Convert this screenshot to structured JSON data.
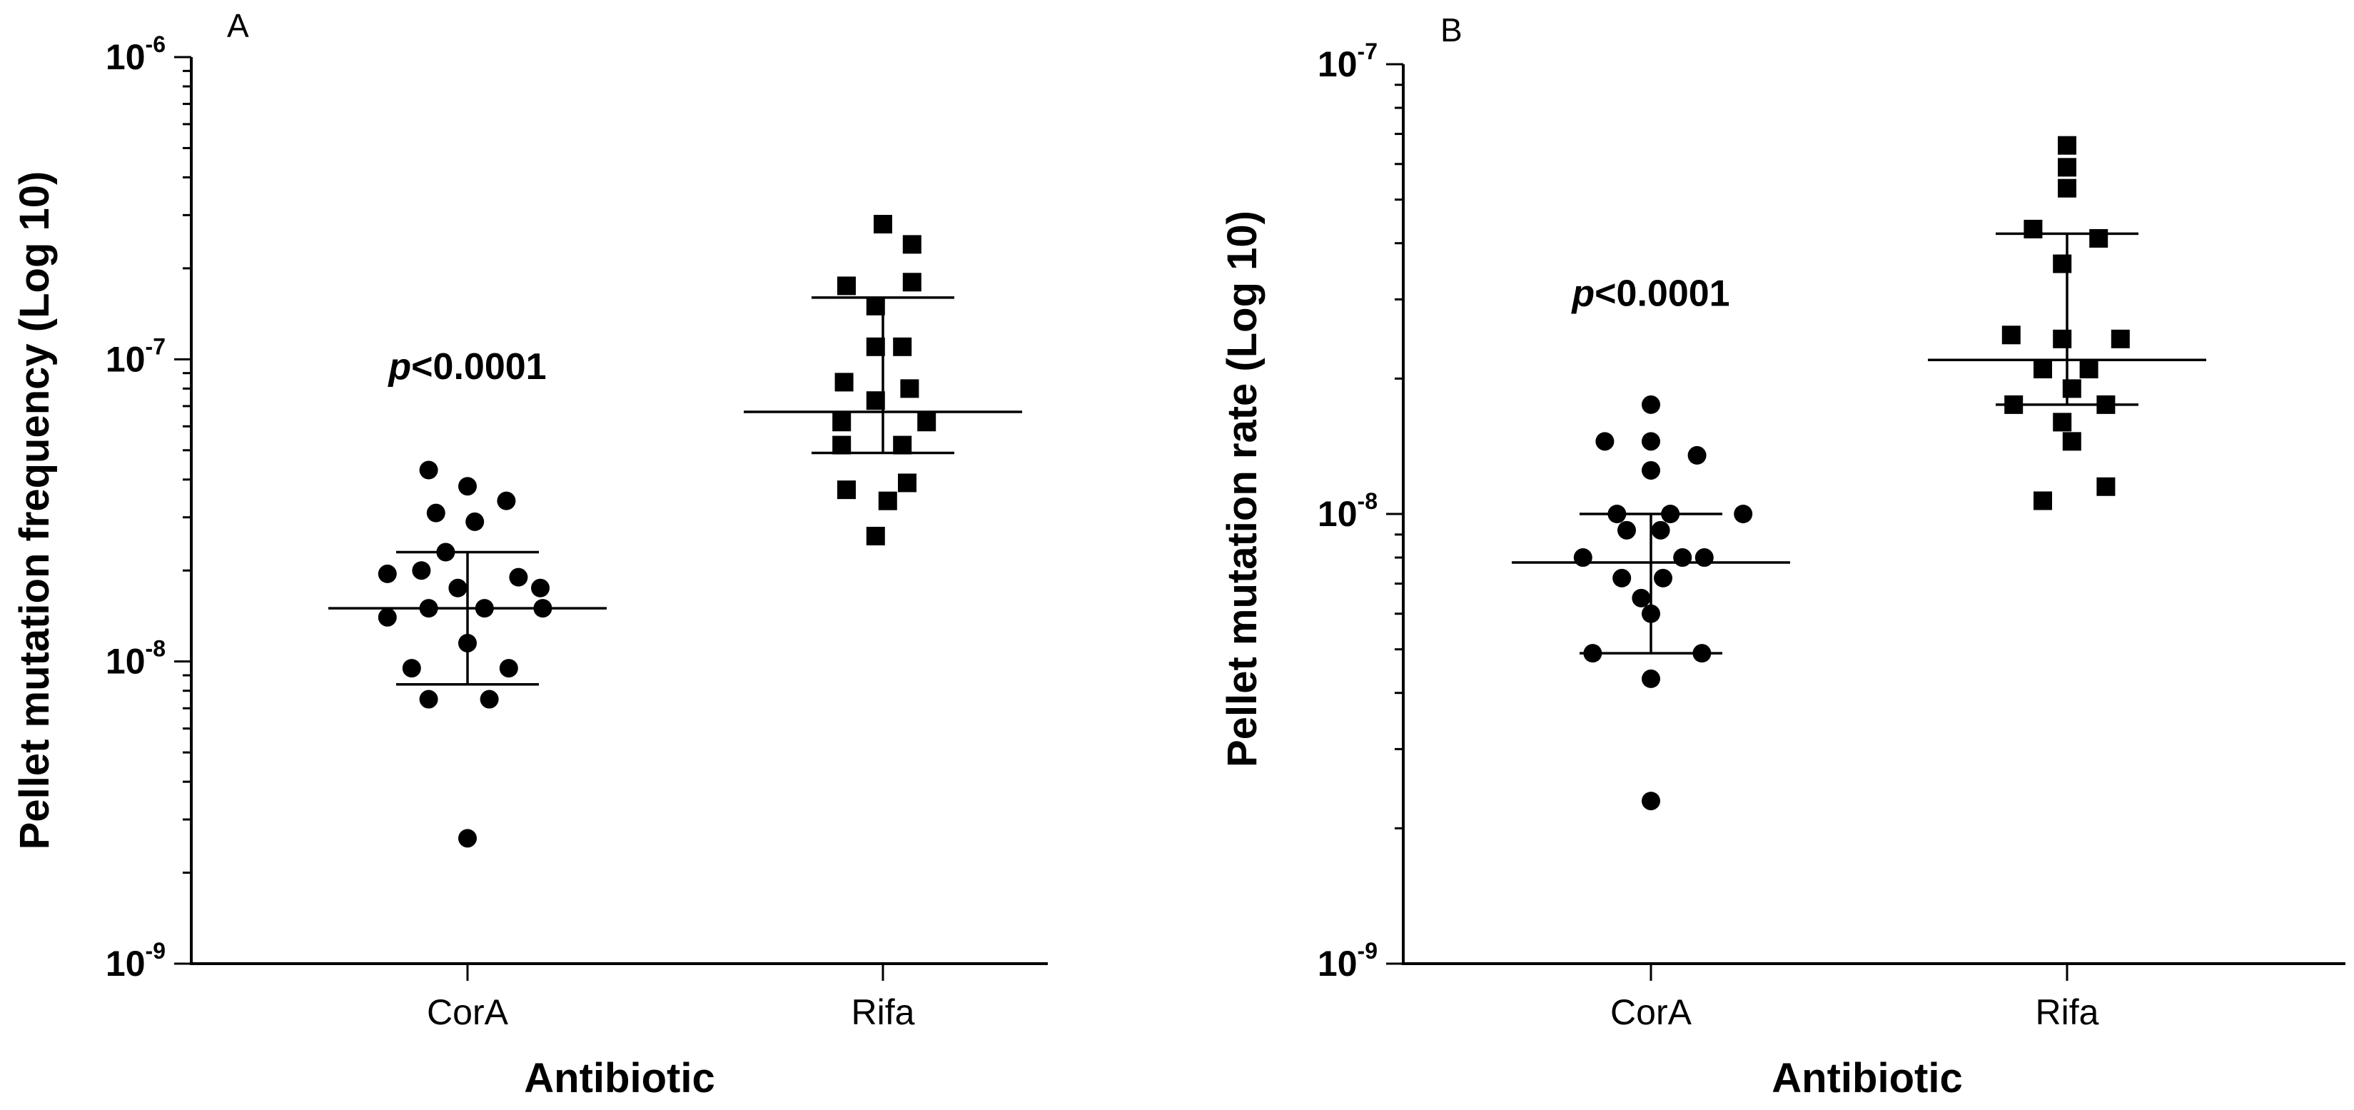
{
  "chart_data": [
    {
      "panel": "A",
      "type": "scatter",
      "title": "",
      "xlabel": "Antibiotic",
      "ylabel": "Pellet mutation frequency (Log 10)",
      "yscale": "log10",
      "ylim": [
        1e-09,
        1e-06
      ],
      "yticks": [
        {
          "base": "10",
          "exp": "-9",
          "value": 1e-09
        },
        {
          "base": "10",
          "exp": "-8",
          "value": 1e-08
        },
        {
          "base": "10",
          "exp": "-7",
          "value": 1e-07
        },
        {
          "base": "10",
          "exp": "-6",
          "value": 1e-06
        }
      ],
      "categories": [
        "CorA",
        "Rifa"
      ],
      "annotation": {
        "prefix": "p",
        "text": "<0.0001",
        "y": 9.5e-08
      },
      "series": [
        {
          "name": "CorA",
          "marker": "circle",
          "median": 1.5e-08,
          "q1": 8.4e-09,
          "q3": 2.3e-08,
          "points": [
            {
              "dx": -0.16,
              "y": 4.3e-08
            },
            {
              "dx": 0.0,
              "y": 3.8e-08
            },
            {
              "dx": 0.16,
              "y": 3.4e-08
            },
            {
              "dx": -0.13,
              "y": 3.1e-08
            },
            {
              "dx": 0.03,
              "y": 2.9e-08
            },
            {
              "dx": -0.09,
              "y": 2.3e-08
            },
            {
              "dx": -0.33,
              "y": 1.95e-08
            },
            {
              "dx": -0.19,
              "y": 2e-08
            },
            {
              "dx": 0.21,
              "y": 1.9e-08
            },
            {
              "dx": 0.3,
              "y": 1.75e-08
            },
            {
              "dx": -0.04,
              "y": 1.75e-08
            },
            {
              "dx": -0.33,
              "y": 1.4e-08
            },
            {
              "dx": -0.16,
              "y": 1.5e-08
            },
            {
              "dx": 0.07,
              "y": 1.5e-08
            },
            {
              "dx": 0.31,
              "y": 1.5e-08
            },
            {
              "dx": 0.0,
              "y": 1.15e-08
            },
            {
              "dx": -0.23,
              "y": 9.5e-09
            },
            {
              "dx": 0.17,
              "y": 9.5e-09
            },
            {
              "dx": -0.16,
              "y": 7.5e-09
            },
            {
              "dx": 0.09,
              "y": 7.5e-09
            },
            {
              "dx": 0.0,
              "y": 2.6e-09
            }
          ]
        },
        {
          "name": "Rifa",
          "marker": "square",
          "median": 6.7e-08,
          "q1": 4.9e-08,
          "q3": 1.6e-07,
          "points": [
            {
              "dx": 0.0,
              "y": 2.8e-07
            },
            {
              "dx": 0.12,
              "y": 2.4e-07
            },
            {
              "dx": -0.15,
              "y": 1.75e-07
            },
            {
              "dx": 0.12,
              "y": 1.8e-07
            },
            {
              "dx": -0.03,
              "y": 1.5e-07
            },
            {
              "dx": -0.03,
              "y": 1.1e-07
            },
            {
              "dx": 0.08,
              "y": 1.1e-07
            },
            {
              "dx": -0.16,
              "y": 8.4e-08
            },
            {
              "dx": 0.11,
              "y": 8e-08
            },
            {
              "dx": -0.03,
              "y": 7.3e-08
            },
            {
              "dx": -0.17,
              "y": 6.2e-08
            },
            {
              "dx": 0.18,
              "y": 6.2e-08
            },
            {
              "dx": -0.17,
              "y": 5.2e-08
            },
            {
              "dx": 0.08,
              "y": 5.2e-08
            },
            {
              "dx": 0.1,
              "y": 3.9e-08
            },
            {
              "dx": -0.15,
              "y": 3.7e-08
            },
            {
              "dx": 0.02,
              "y": 3.4e-08
            },
            {
              "dx": -0.03,
              "y": 2.6e-08
            }
          ]
        }
      ]
    },
    {
      "panel": "B",
      "type": "scatter",
      "title": "",
      "xlabel": "Antibiotic",
      "ylabel": "Pellet mutation rate  (Log 10)",
      "yscale": "log10",
      "ylim": [
        1e-09,
        1e-07
      ],
      "yticks": [
        {
          "base": "10",
          "exp": "-9",
          "value": 1e-09
        },
        {
          "base": "10",
          "exp": "-8",
          "value": 1e-08
        },
        {
          "base": "10",
          "exp": "-7",
          "value": 1e-07
        }
      ],
      "categories": [
        "CorA",
        "Rifa"
      ],
      "annotation": {
        "prefix": "p",
        "text": "<0.0001",
        "y": 3.1e-08
      },
      "series": [
        {
          "name": "CorA",
          "marker": "circle",
          "median": 7.8e-09,
          "q1": 4.9e-09,
          "q3": 1e-08,
          "points": [
            {
              "dx": 0.0,
              "y": 1.75e-08
            },
            {
              "dx": -0.19,
              "y": 1.45e-08
            },
            {
              "dx": 0.0,
              "y": 1.45e-08
            },
            {
              "dx": 0.19,
              "y": 1.35e-08
            },
            {
              "dx": 0.0,
              "y": 1.25e-08
            },
            {
              "dx": -0.14,
              "y": 1e-08
            },
            {
              "dx": 0.08,
              "y": 1e-08
            },
            {
              "dx": 0.38,
              "y": 1e-08
            },
            {
              "dx": -0.1,
              "y": 9.2e-09
            },
            {
              "dx": 0.04,
              "y": 9.2e-09
            },
            {
              "dx": -0.28,
              "y": 8e-09
            },
            {
              "dx": 0.13,
              "y": 8e-09
            },
            {
              "dx": 0.22,
              "y": 8e-09
            },
            {
              "dx": -0.12,
              "y": 7.2e-09
            },
            {
              "dx": 0.05,
              "y": 7.2e-09
            },
            {
              "dx": -0.04,
              "y": 6.5e-09
            },
            {
              "dx": 0.0,
              "y": 6e-09
            },
            {
              "dx": -0.24,
              "y": 4.9e-09
            },
            {
              "dx": 0.21,
              "y": 4.9e-09
            },
            {
              "dx": 0.0,
              "y": 4.3e-09
            },
            {
              "dx": 0.0,
              "y": 2.3e-09
            }
          ]
        },
        {
          "name": "Rifa",
          "marker": "square",
          "median": 2.2e-08,
          "q1": 1.75e-08,
          "q3": 4.2e-08,
          "points": [
            {
              "dx": 0.0,
              "y": 6.6e-08
            },
            {
              "dx": 0.0,
              "y": 5.9e-08
            },
            {
              "dx": 0.0,
              "y": 5.3e-08
            },
            {
              "dx": -0.14,
              "y": 4.3e-08
            },
            {
              "dx": 0.13,
              "y": 4.1e-08
            },
            {
              "dx": -0.02,
              "y": 3.6e-08
            },
            {
              "dx": -0.23,
              "y": 2.5e-08
            },
            {
              "dx": -0.02,
              "y": 2.45e-08
            },
            {
              "dx": 0.22,
              "y": 2.45e-08
            },
            {
              "dx": -0.1,
              "y": 2.1e-08
            },
            {
              "dx": 0.09,
              "y": 2.1e-08
            },
            {
              "dx": 0.02,
              "y": 1.9e-08
            },
            {
              "dx": -0.22,
              "y": 1.75e-08
            },
            {
              "dx": 0.16,
              "y": 1.75e-08
            },
            {
              "dx": -0.02,
              "y": 1.6e-08
            },
            {
              "dx": 0.02,
              "y": 1.45e-08
            },
            {
              "dx": 0.16,
              "y": 1.15e-08
            },
            {
              "dx": -0.1,
              "y": 1.07e-08
            }
          ]
        }
      ]
    }
  ]
}
